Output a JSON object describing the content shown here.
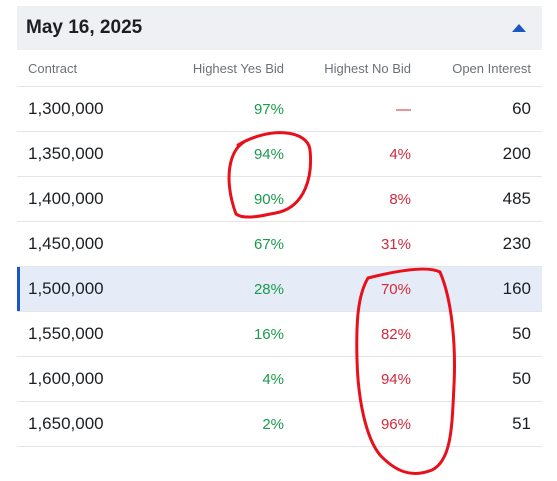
{
  "header": {
    "title": "May 16, 2025",
    "collapse_icon": "caret-up-icon",
    "accent": "#1a56c4"
  },
  "columns": {
    "contract": "Contract",
    "yes_bid": "Highest Yes Bid",
    "no_bid": "Highest No Bid",
    "open_interest": "Open Interest"
  },
  "rows": [
    {
      "contract": "1,300,000",
      "yes": "97%",
      "no": "—",
      "oi": "60"
    },
    {
      "contract": "1,350,000",
      "yes": "94%",
      "no": "4%",
      "oi": "200"
    },
    {
      "contract": "1,400,000",
      "yes": "90%",
      "no": "8%",
      "oi": "485"
    },
    {
      "contract": "1,450,000",
      "yes": "67%",
      "no": "31%",
      "oi": "230"
    },
    {
      "contract": "1,500,000",
      "yes": "28%",
      "no": "70%",
      "oi": "160"
    },
    {
      "contract": "1,550,000",
      "yes": "16%",
      "no": "82%",
      "oi": "50"
    },
    {
      "contract": "1,600,000",
      "yes": "4%",
      "no": "94%",
      "oi": "50"
    },
    {
      "contract": "1,650,000",
      "yes": "2%",
      "no": "96%",
      "oi": "51"
    }
  ],
  "colors": {
    "yes": "#1a9a4b",
    "no": "#d2293b",
    "annotation": "#e8101a"
  }
}
